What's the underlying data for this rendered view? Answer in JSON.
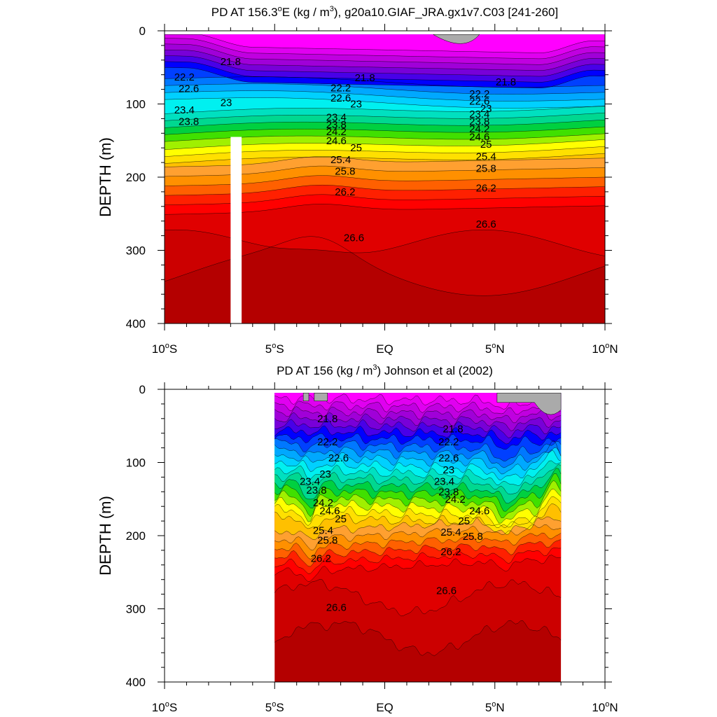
{
  "chart_data": [
    {
      "type": "contour",
      "title": "PD AT 156.3°E (kg / m³), g20a10.GIAF_JRA.gx1v7.C03 [241-260]",
      "title_parts": {
        "pre": "PD AT 156.3",
        "sup1": "o",
        "mid1": "E (kg / m",
        "sup2": "3",
        "post": "), g20a10.GIAF_JRA.gx1v7.C03 [241-260]"
      },
      "ylabel": "DEPTH (m)",
      "xlim": [
        -10,
        10
      ],
      "ylim": [
        0,
        400
      ],
      "y_inverted": true,
      "data_x_range": [
        -10,
        10
      ],
      "yticks": [
        0,
        100,
        200,
        300,
        400
      ],
      "xticks": [
        {
          "x": -10,
          "num": "10",
          "sup": "o",
          "hemi": "S"
        },
        {
          "x": -5,
          "num": "5",
          "sup": "o",
          "hemi": "S"
        },
        {
          "x": 0,
          "num": "EQ",
          "sup": "",
          "hemi": ""
        },
        {
          "x": 5,
          "num": "5",
          "sup": "o",
          "hemi": "N"
        },
        {
          "x": 10,
          "num": "10",
          "sup": "o",
          "hemi": "N"
        }
      ],
      "gap": {
        "x": [
          -7,
          -6.5
        ],
        "depth_top": 145
      },
      "contour_labels": [
        {
          "text": "21.8",
          "x": -7.0,
          "d": 42
        },
        {
          "text": "21.8",
          "x": -0.9,
          "d": 64
        },
        {
          "text": "21.8",
          "x": 5.5,
          "d": 70
        },
        {
          "text": "22.2",
          "x": -9.1,
          "d": 63
        },
        {
          "text": "22.2",
          "x": -2.0,
          "d": 78
        },
        {
          "text": "22.2",
          "x": 4.3,
          "d": 86
        },
        {
          "text": "22.6",
          "x": -8.9,
          "d": 79
        },
        {
          "text": "22.6",
          "x": -2.0,
          "d": 92
        },
        {
          "text": "22.6",
          "x": 4.3,
          "d": 96
        },
        {
          "text": "23",
          "x": -7.2,
          "d": 98
        },
        {
          "text": "23",
          "x": -1.3,
          "d": 100
        },
        {
          "text": "23",
          "x": 4.6,
          "d": 106
        },
        {
          "text": "23.4",
          "x": -9.1,
          "d": 108
        },
        {
          "text": "23.4",
          "x": -2.2,
          "d": 118
        },
        {
          "text": "23.4",
          "x": 4.3,
          "d": 114
        },
        {
          "text": "23.8",
          "x": -8.9,
          "d": 124
        },
        {
          "text": "23.8",
          "x": -2.2,
          "d": 128
        },
        {
          "text": "23.8",
          "x": 4.3,
          "d": 124
        },
        {
          "text": "24.2",
          "x": -2.2,
          "d": 138
        },
        {
          "text": "24.2",
          "x": 4.3,
          "d": 134
        },
        {
          "text": "24.6",
          "x": -2.2,
          "d": 150
        },
        {
          "text": "24.6",
          "x": 4.3,
          "d": 145
        },
        {
          "text": "25",
          "x": -1.3,
          "d": 160
        },
        {
          "text": "25",
          "x": 4.6,
          "d": 155
        },
        {
          "text": "25.4",
          "x": -2.0,
          "d": 176
        },
        {
          "text": "25.4",
          "x": 4.6,
          "d": 172
        },
        {
          "text": "25.8",
          "x": -1.8,
          "d": 192
        },
        {
          "text": "25.8",
          "x": 4.6,
          "d": 188
        },
        {
          "text": "26.2",
          "x": -1.8,
          "d": 220
        },
        {
          "text": "26.2",
          "x": 4.6,
          "d": 215
        },
        {
          "text": "26.6",
          "x": -1.4,
          "d": 283
        },
        {
          "text": "26.6",
          "x": 4.6,
          "d": 264
        }
      ]
    },
    {
      "type": "contour",
      "title": "PD AT 156 (kg / m³) Johnson et al (2002)",
      "title_parts": {
        "pre": "PD AT 156",
        "sup1": "",
        "mid1": " (kg / m",
        "sup2": "3",
        "post": ") Johnson et al (2002)"
      },
      "ylabel": "DEPTH (m)",
      "xlim": [
        -10,
        10
      ],
      "ylim": [
        0,
        400
      ],
      "y_inverted": true,
      "data_x_range": [
        -5,
        8
      ],
      "yticks": [
        0,
        100,
        200,
        300,
        400
      ],
      "xticks": [
        {
          "x": -10,
          "num": "10",
          "sup": "o",
          "hemi": "S"
        },
        {
          "x": -5,
          "num": "5",
          "sup": "o",
          "hemi": "S"
        },
        {
          "x": 0,
          "num": "EQ",
          "sup": "",
          "hemi": ""
        },
        {
          "x": 5,
          "num": "5",
          "sup": "o",
          "hemi": "N"
        },
        {
          "x": 10,
          "num": "10",
          "sup": "o",
          "hemi": "N"
        }
      ],
      "contour_labels": [
        {
          "text": "21.8",
          "x": -2.6,
          "d": 40
        },
        {
          "text": "21.8",
          "x": 3.1,
          "d": 54
        },
        {
          "text": "22.2",
          "x": -2.6,
          "d": 72
        },
        {
          "text": "22.2",
          "x": 2.9,
          "d": 72
        },
        {
          "text": "22.6",
          "x": -2.1,
          "d": 94
        },
        {
          "text": "22.6",
          "x": 2.9,
          "d": 94
        },
        {
          "text": "23",
          "x": -2.7,
          "d": 116
        },
        {
          "text": "23",
          "x": 2.9,
          "d": 110
        },
        {
          "text": "23.4",
          "x": -3.4,
          "d": 126
        },
        {
          "text": "23.4",
          "x": 2.7,
          "d": 126
        },
        {
          "text": "23.8",
          "x": -3.1,
          "d": 138
        },
        {
          "text": "23.8",
          "x": 2.9,
          "d": 140
        },
        {
          "text": "24.2",
          "x": -2.8,
          "d": 155
        },
        {
          "text": "24.2",
          "x": 3.2,
          "d": 150
        },
        {
          "text": "24.6",
          "x": -2.5,
          "d": 166
        },
        {
          "text": "24.6",
          "x": 4.3,
          "d": 166
        },
        {
          "text": "25",
          "x": -2.0,
          "d": 177
        },
        {
          "text": "25",
          "x": 3.6,
          "d": 180
        },
        {
          "text": "25.4",
          "x": -2.8,
          "d": 193
        },
        {
          "text": "25.4",
          "x": 3.0,
          "d": 195
        },
        {
          "text": "25.8",
          "x": -2.6,
          "d": 206
        },
        {
          "text": "25.8",
          "x": 4.0,
          "d": 201
        },
        {
          "text": "26.2",
          "x": -2.9,
          "d": 231
        },
        {
          "text": "26.2",
          "x": 3.0,
          "d": 222
        },
        {
          "text": "26.6",
          "x": -2.2,
          "d": 298
        },
        {
          "text": "26.6",
          "x": 2.8,
          "d": 275
        }
      ]
    }
  ],
  "palette": [
    "#ff00ff",
    "#e000f0",
    "#c000e0",
    "#a000d8",
    "#7800d8",
    "#4800e8",
    "#0000ff",
    "#0040ff",
    "#0078ff",
    "#00a8ff",
    "#00d0ff",
    "#00f0f0",
    "#00e0c0",
    "#00d890",
    "#00d040",
    "#40e000",
    "#a0f000",
    "#ffff00",
    "#ffe000",
    "#ffc000",
    "#ffa030",
    "#ff9000",
    "#ff6000",
    "#ff2000",
    "#ff0000",
    "#e00000",
    "#cc0000",
    "#b40000"
  ],
  "land_color": "#aaaaaa"
}
